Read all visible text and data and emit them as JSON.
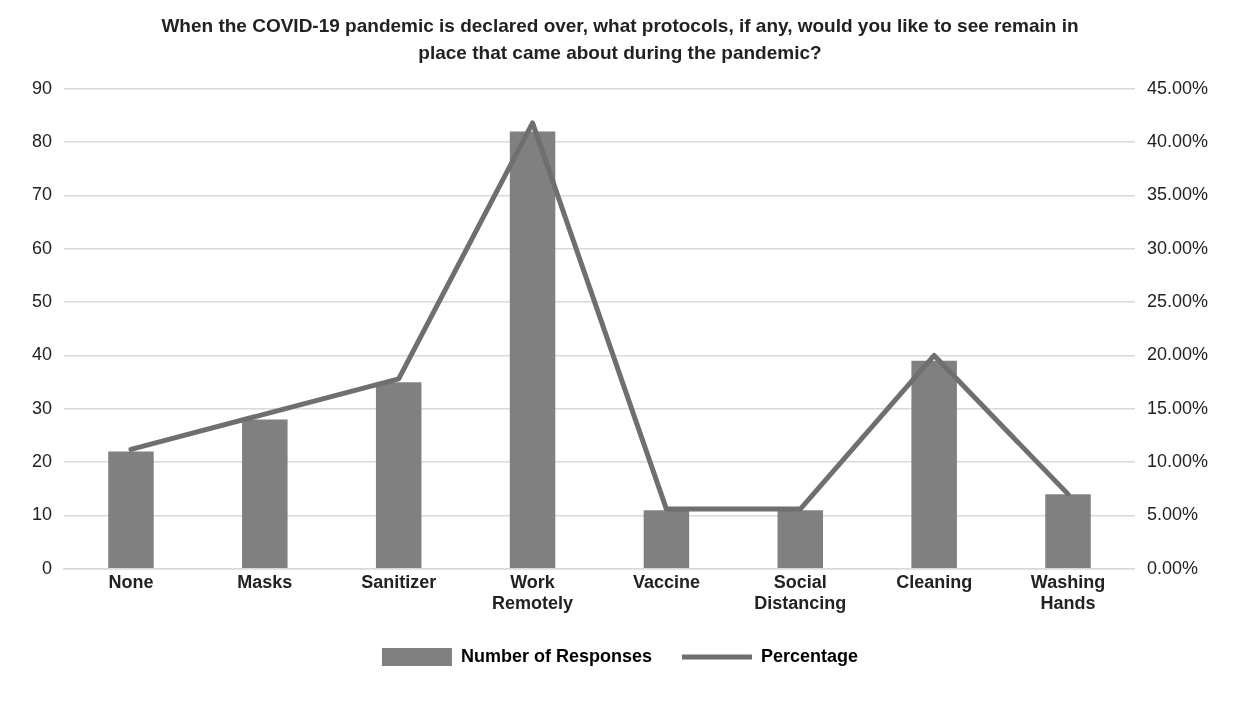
{
  "chart_data": {
    "type": "bar",
    "title": "When the COVID-19 pandemic is declared over, what protocols, if any, would you like to see remain in place that came about during the pandemic?",
    "categories": [
      [
        "None"
      ],
      [
        "Masks"
      ],
      [
        "Sanitizer"
      ],
      [
        "Work",
        "Remotely"
      ],
      [
        "Vaccine"
      ],
      [
        "Social",
        "Distancing"
      ],
      [
        "Cleaning"
      ],
      [
        "Washing",
        "Hands"
      ]
    ],
    "series": [
      {
        "name": "Number of Responses",
        "color": "#808080",
        "values": [
          22,
          28,
          35,
          82,
          11,
          11,
          39,
          14
        ]
      },
      {
        "name": "Percentage",
        "type": "line",
        "axis": "y2",
        "color": "#6f6f6f",
        "values": [
          11.2,
          14.5,
          17.8,
          41.8,
          5.6,
          5.6,
          20,
          7
        ]
      }
    ],
    "ylim": [
      0,
      90
    ],
    "yticks": [
      0,
      10,
      20,
      30,
      40,
      50,
      60,
      70,
      80,
      90
    ],
    "y2lim": [
      0,
      45
    ],
    "y2ticks": [
      {
        "value": 0,
        "label": "0.00%"
      },
      {
        "value": 5,
        "label": "5.00%"
      },
      {
        "value": 10,
        "label": "10.00%"
      },
      {
        "value": 15,
        "label": "15.00%"
      },
      {
        "value": 20,
        "label": "20.00%"
      },
      {
        "value": 25,
        "label": "25.00%"
      },
      {
        "value": 30,
        "label": "30.00%"
      },
      {
        "value": 35,
        "label": "35.00%"
      },
      {
        "value": 40,
        "label": "40.00%"
      },
      {
        "value": 45,
        "label": "45.00%"
      }
    ],
    "grid": "y",
    "legend": "bottom",
    "marker": "none",
    "line_style": "solid"
  }
}
